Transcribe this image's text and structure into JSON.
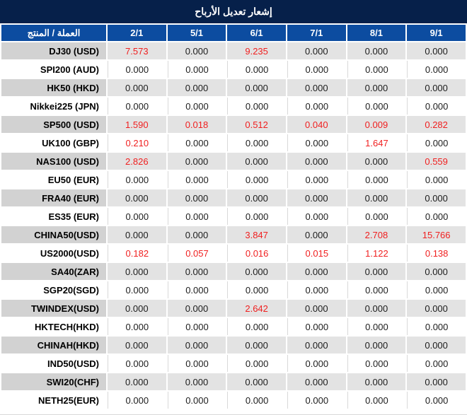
{
  "title": "إشعار تعديل الأرباح",
  "colors": {
    "title_bg": "#06204a",
    "header_bg": "#0c4ca0",
    "gray_row_name": "#d2d2d2",
    "gray_row_value": "#e3e3e3",
    "red_value": "#f02020",
    "black_value": "#1c1c1c"
  },
  "table": {
    "product_header": "العملة / المنتج",
    "date_headers": [
      "2/1",
      "5/1",
      "6/1",
      "7/1",
      "8/1",
      "9/1"
    ],
    "rows": [
      {
        "name": "DJ30 (USD)",
        "values": [
          "7.573",
          "0.000",
          "9.235",
          "0.000",
          "0.000",
          "0.000"
        ],
        "red": [
          true,
          false,
          true,
          false,
          false,
          false
        ]
      },
      {
        "name": "SPI200 (AUD)",
        "values": [
          "0.000",
          "0.000",
          "0.000",
          "0.000",
          "0.000",
          "0.000"
        ],
        "red": [
          false,
          false,
          false,
          false,
          false,
          false
        ]
      },
      {
        "name": "HK50 (HKD)",
        "values": [
          "0.000",
          "0.000",
          "0.000",
          "0.000",
          "0.000",
          "0.000"
        ],
        "red": [
          false,
          false,
          false,
          false,
          false,
          false
        ]
      },
      {
        "name": "Nikkei225 (JPN)",
        "values": [
          "0.000",
          "0.000",
          "0.000",
          "0.000",
          "0.000",
          "0.000"
        ],
        "red": [
          false,
          false,
          false,
          false,
          false,
          false
        ]
      },
      {
        "name": "SP500 (USD)",
        "values": [
          "1.590",
          "0.018",
          "0.512",
          "0.040",
          "0.009",
          "0.282"
        ],
        "red": [
          true,
          true,
          true,
          true,
          true,
          true
        ]
      },
      {
        "name": "UK100 (GBP)",
        "values": [
          "0.210",
          "0.000",
          "0.000",
          "0.000",
          "1.647",
          "0.000"
        ],
        "red": [
          true,
          false,
          false,
          false,
          true,
          false
        ]
      },
      {
        "name": "NAS100 (USD)",
        "values": [
          "2.826",
          "0.000",
          "0.000",
          "0.000",
          "0.000",
          "0.559"
        ],
        "red": [
          true,
          false,
          false,
          false,
          false,
          true
        ]
      },
      {
        "name": "EU50 (EUR)",
        "values": [
          "0.000",
          "0.000",
          "0.000",
          "0.000",
          "0.000",
          "0.000"
        ],
        "red": [
          false,
          false,
          false,
          false,
          false,
          false
        ]
      },
      {
        "name": "FRA40 (EUR)",
        "values": [
          "0.000",
          "0.000",
          "0.000",
          "0.000",
          "0.000",
          "0.000"
        ],
        "red": [
          false,
          false,
          false,
          false,
          false,
          false
        ]
      },
      {
        "name": "ES35 (EUR)",
        "values": [
          "0.000",
          "0.000",
          "0.000",
          "0.000",
          "0.000",
          "0.000"
        ],
        "red": [
          false,
          false,
          false,
          false,
          false,
          false
        ]
      },
      {
        "name": "CHINA50(USD)",
        "values": [
          "0.000",
          "0.000",
          "3.847",
          "0.000",
          "2.708",
          "15.766"
        ],
        "red": [
          false,
          false,
          true,
          false,
          true,
          true
        ]
      },
      {
        "name": "US2000(USD)",
        "values": [
          "0.182",
          "0.057",
          "0.016",
          "0.015",
          "1.122",
          "0.138"
        ],
        "red": [
          true,
          true,
          true,
          true,
          true,
          true
        ]
      },
      {
        "name": "SA40(ZAR)",
        "values": [
          "0.000",
          "0.000",
          "0.000",
          "0.000",
          "0.000",
          "0.000"
        ],
        "red": [
          false,
          false,
          false,
          false,
          false,
          false
        ]
      },
      {
        "name": "SGP20(SGD)",
        "values": [
          "0.000",
          "0.000",
          "0.000",
          "0.000",
          "0.000",
          "0.000"
        ],
        "red": [
          false,
          false,
          false,
          false,
          false,
          false
        ]
      },
      {
        "name": "TWINDEX(USD)",
        "values": [
          "0.000",
          "0.000",
          "2.642",
          "0.000",
          "0.000",
          "0.000"
        ],
        "red": [
          false,
          false,
          true,
          false,
          false,
          false
        ]
      },
      {
        "name": "HKTECH(HKD)",
        "values": [
          "0.000",
          "0.000",
          "0.000",
          "0.000",
          "0.000",
          "0.000"
        ],
        "red": [
          false,
          false,
          false,
          false,
          false,
          false
        ]
      },
      {
        "name": "CHINAH(HKD)",
        "values": [
          "0.000",
          "0.000",
          "0.000",
          "0.000",
          "0.000",
          "0.000"
        ],
        "red": [
          false,
          false,
          false,
          false,
          false,
          false
        ]
      },
      {
        "name": "IND50(USD)",
        "values": [
          "0.000",
          "0.000",
          "0.000",
          "0.000",
          "0.000",
          "0.000"
        ],
        "red": [
          false,
          false,
          false,
          false,
          false,
          false
        ]
      },
      {
        "name": "SWI20(CHF)",
        "values": [
          "0.000",
          "0.000",
          "0.000",
          "0.000",
          "0.000",
          "0.000"
        ],
        "red": [
          false,
          false,
          false,
          false,
          false,
          false
        ]
      },
      {
        "name": "NETH25(EUR)",
        "values": [
          "0.000",
          "0.000",
          "0.000",
          "0.000",
          "0.000",
          "0.000"
        ],
        "red": [
          false,
          false,
          false,
          false,
          false,
          false
        ]
      }
    ]
  }
}
